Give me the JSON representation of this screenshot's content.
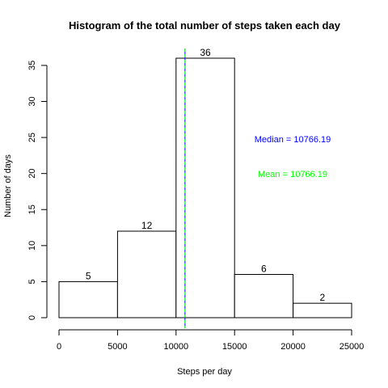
{
  "chart_data": {
    "type": "bar",
    "title": "Histogram of the total number of steps taken each day",
    "xlabel": "Steps per day",
    "ylabel": "Number of days",
    "bins": [
      {
        "from": 0,
        "to": 5000,
        "count": 5,
        "label": "5"
      },
      {
        "from": 5000,
        "to": 10000,
        "count": 12,
        "label": "12"
      },
      {
        "from": 10000,
        "to": 15000,
        "count": 36,
        "label": "36"
      },
      {
        "from": 15000,
        "to": 20000,
        "count": 6,
        "label": "6"
      },
      {
        "from": 20000,
        "to": 25000,
        "count": 2,
        "label": "2"
      }
    ],
    "xticks": [
      {
        "value": 0,
        "label": "0"
      },
      {
        "value": 5000,
        "label": "5000"
      },
      {
        "value": 10000,
        "label": "10000"
      },
      {
        "value": 15000,
        "label": "15000"
      },
      {
        "value": 20000,
        "label": "20000"
      },
      {
        "value": 25000,
        "label": "25000"
      }
    ],
    "yticks": [
      {
        "value": 0,
        "label": "0"
      },
      {
        "value": 5,
        "label": "5"
      },
      {
        "value": 10,
        "label": "10"
      },
      {
        "value": 15,
        "label": "15"
      },
      {
        "value": 20,
        "label": "20"
      },
      {
        "value": 25,
        "label": "25"
      },
      {
        "value": 30,
        "label": "30"
      },
      {
        "value": 35,
        "label": "35"
      }
    ],
    "xlim": [
      0,
      25000
    ],
    "ylim": [
      0,
      36
    ],
    "median": {
      "value": 10766.19,
      "text": "Median =  10766.19",
      "color": "#0000ff",
      "line_style": "solid"
    },
    "mean": {
      "value": 10766.19,
      "text": "Mean =  10766.19",
      "color": "#00ff00",
      "line_style": "dashed"
    },
    "grid": false
  }
}
